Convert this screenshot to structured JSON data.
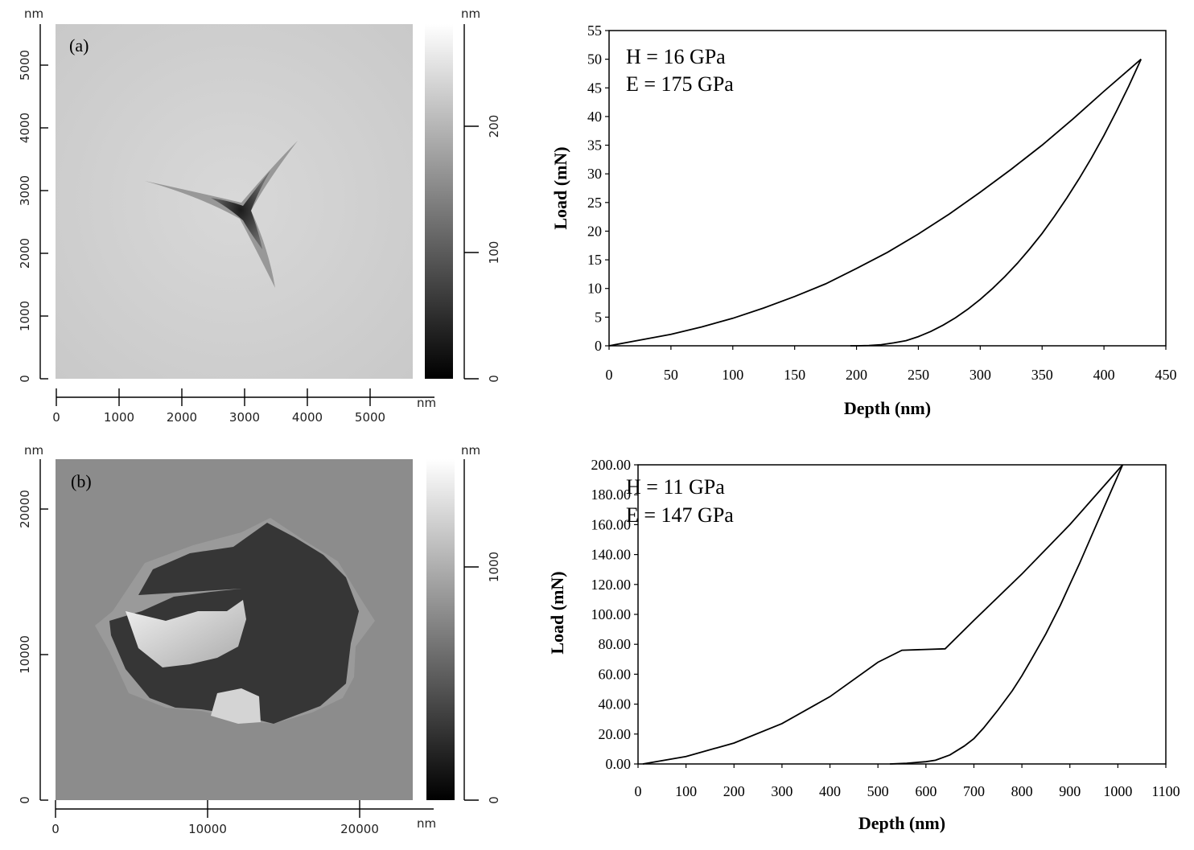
{
  "afm_images": [
    {
      "panel_label": "(a)",
      "unit_y": "nm",
      "unit_x": "nm",
      "unit_scale": "nm",
      "x_ticks": [
        "0",
        "1000",
        "2000",
        "3000",
        "4000",
        "5000"
      ],
      "y_ticks": [
        "0",
        "1000",
        "2000",
        "3000",
        "4000",
        "5000"
      ],
      "scale_ticks": [
        "0",
        "100",
        "200"
      ]
    },
    {
      "panel_label": "(b)",
      "unit_y": "nm",
      "unit_x": "nm",
      "unit_scale": "nm",
      "x_ticks": [
        "0",
        "10000",
        "20000"
      ],
      "y_ticks": [
        "0",
        "10000",
        "20000"
      ],
      "scale_ticks": [
        "0",
        "1000"
      ]
    }
  ],
  "chart_data": [
    {
      "type": "line",
      "xlabel": "Depth (nm)",
      "ylabel": "Load (mN)",
      "xlim": [
        0,
        450
      ],
      "ylim": [
        0,
        55
      ],
      "x_ticks": [
        "0",
        "50",
        "100",
        "150",
        "200",
        "250",
        "300",
        "350",
        "400",
        "450"
      ],
      "y_ticks": [
        "0",
        "5",
        "10",
        "15",
        "20",
        "25",
        "30",
        "35",
        "40",
        "45",
        "50",
        "55"
      ],
      "annotations": [
        "H = 16 GPa",
        "E = 175 GPa"
      ],
      "series": [
        {
          "x": [
            0,
            25,
            50,
            75,
            100,
            125,
            150,
            175,
            200,
            225,
            250,
            275,
            300,
            325,
            350,
            375,
            400,
            430
          ],
          "y": [
            0,
            1,
            2,
            3.3,
            4.8,
            6.6,
            8.6,
            10.8,
            13.5,
            16.3,
            19.5,
            23,
            26.8,
            30.8,
            35,
            39.6,
            44.4,
            50
          ]
        },
        {
          "x": [
            430,
            420,
            410,
            400,
            390,
            380,
            370,
            360,
            350,
            340,
            330,
            320,
            310,
            300,
            290,
            280,
            270,
            260,
            250,
            240,
            230,
            220,
            210,
            200,
            195
          ],
          "y": [
            50,
            45.3,
            40.9,
            36.7,
            32.8,
            29.2,
            25.8,
            22.6,
            19.6,
            16.9,
            14.4,
            12.1,
            10,
            8.1,
            6.4,
            4.9,
            3.6,
            2.5,
            1.6,
            0.9,
            0.5,
            0.2,
            0.05,
            0,
            0
          ]
        }
      ]
    },
    {
      "type": "line",
      "xlabel": "Depth (nm)",
      "ylabel": "Load (mN)",
      "xlim": [
        0,
        1100
      ],
      "ylim": [
        0,
        200
      ],
      "x_ticks": [
        "0",
        "100",
        "200",
        "300",
        "400",
        "500",
        "600",
        "700",
        "800",
        "900",
        "1000",
        "1100"
      ],
      "y_ticks": [
        "0.00",
        "20.00",
        "40.00",
        "60.00",
        "80.00",
        "100.00",
        "120.00",
        "140.00",
        "160.00",
        "180.00",
        "200.00"
      ],
      "annotations": [
        "H = 11 GPa",
        "E = 147 GPa"
      ],
      "series": [
        {
          "x": [
            10,
            100,
            200,
            300,
            400,
            500,
            550,
            640,
            700,
            800,
            900,
            1010
          ],
          "y": [
            0,
            5,
            14,
            27,
            45,
            68,
            76,
            77,
            96,
            127,
            160,
            200
          ]
        },
        {
          "x": [
            1010,
            980,
            950,
            920,
            900,
            880,
            850,
            820,
            800,
            780,
            750,
            720,
            700,
            680,
            650,
            620,
            600,
            580,
            560,
            540,
            525
          ],
          "y": [
            200,
            178,
            156,
            134,
            120,
            106,
            87,
            70,
            59,
            49,
            36,
            24,
            17,
            12,
            6,
            2.5,
            1.5,
            1,
            0.5,
            0.2,
            0
          ]
        }
      ]
    }
  ]
}
